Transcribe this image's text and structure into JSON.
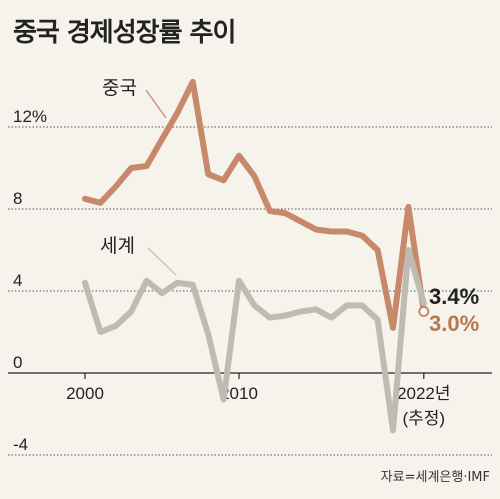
{
  "chart_data": {
    "type": "line",
    "title": "중국 경제성장률 추이",
    "source": "자료=세계은행·IMF",
    "xlabel": "",
    "ylabel": "",
    "x": [
      2000,
      2001,
      2002,
      2003,
      2004,
      2005,
      2006,
      2007,
      2008,
      2009,
      2010,
      2011,
      2012,
      2013,
      2014,
      2015,
      2016,
      2017,
      2018,
      2019,
      2020,
      2021,
      2022
    ],
    "xlim": [
      1999,
      2023
    ],
    "ylim": [
      -4,
      14
    ],
    "x_tick_labels": [
      {
        "x": 2000,
        "label": "2000"
      },
      {
        "x": 2010,
        "label": "2010"
      },
      {
        "x": 2022,
        "label": "2022년"
      }
    ],
    "x_tick_note": "(추정)",
    "y_ticks": [
      {
        "y": 12,
        "label": "12%"
      },
      {
        "y": 8,
        "label": "8"
      },
      {
        "y": 4,
        "label": "4"
      },
      {
        "y": 0,
        "label": "0"
      },
      {
        "y": -4,
        "label": "-4"
      }
    ],
    "grid": "horizontal-dashed",
    "series": [
      {
        "name": "중국",
        "color": "#c8896a",
        "label_color": "#222222",
        "values": [
          8.5,
          8.3,
          9.1,
          10.0,
          10.1,
          11.4,
          12.7,
          14.2,
          9.7,
          9.4,
          10.6,
          9.6,
          7.9,
          7.8,
          7.4,
          7.0,
          6.9,
          6.9,
          6.7,
          6.0,
          2.2,
          8.1,
          3.0
        ],
        "end_label": "3.0%",
        "end_label_color": "#b8774f"
      },
      {
        "name": "세계",
        "color": "#bebbb3",
        "label_color": "#222222",
        "values": [
          4.4,
          2.0,
          2.3,
          3.0,
          4.5,
          3.9,
          4.4,
          4.3,
          1.9,
          -1.3,
          4.5,
          3.3,
          2.7,
          2.8,
          3.0,
          3.1,
          2.7,
          3.3,
          3.3,
          2.6,
          -2.8,
          6.0,
          3.4
        ],
        "end_label": "3.4%",
        "end_label_color": "#222222"
      }
    ]
  }
}
